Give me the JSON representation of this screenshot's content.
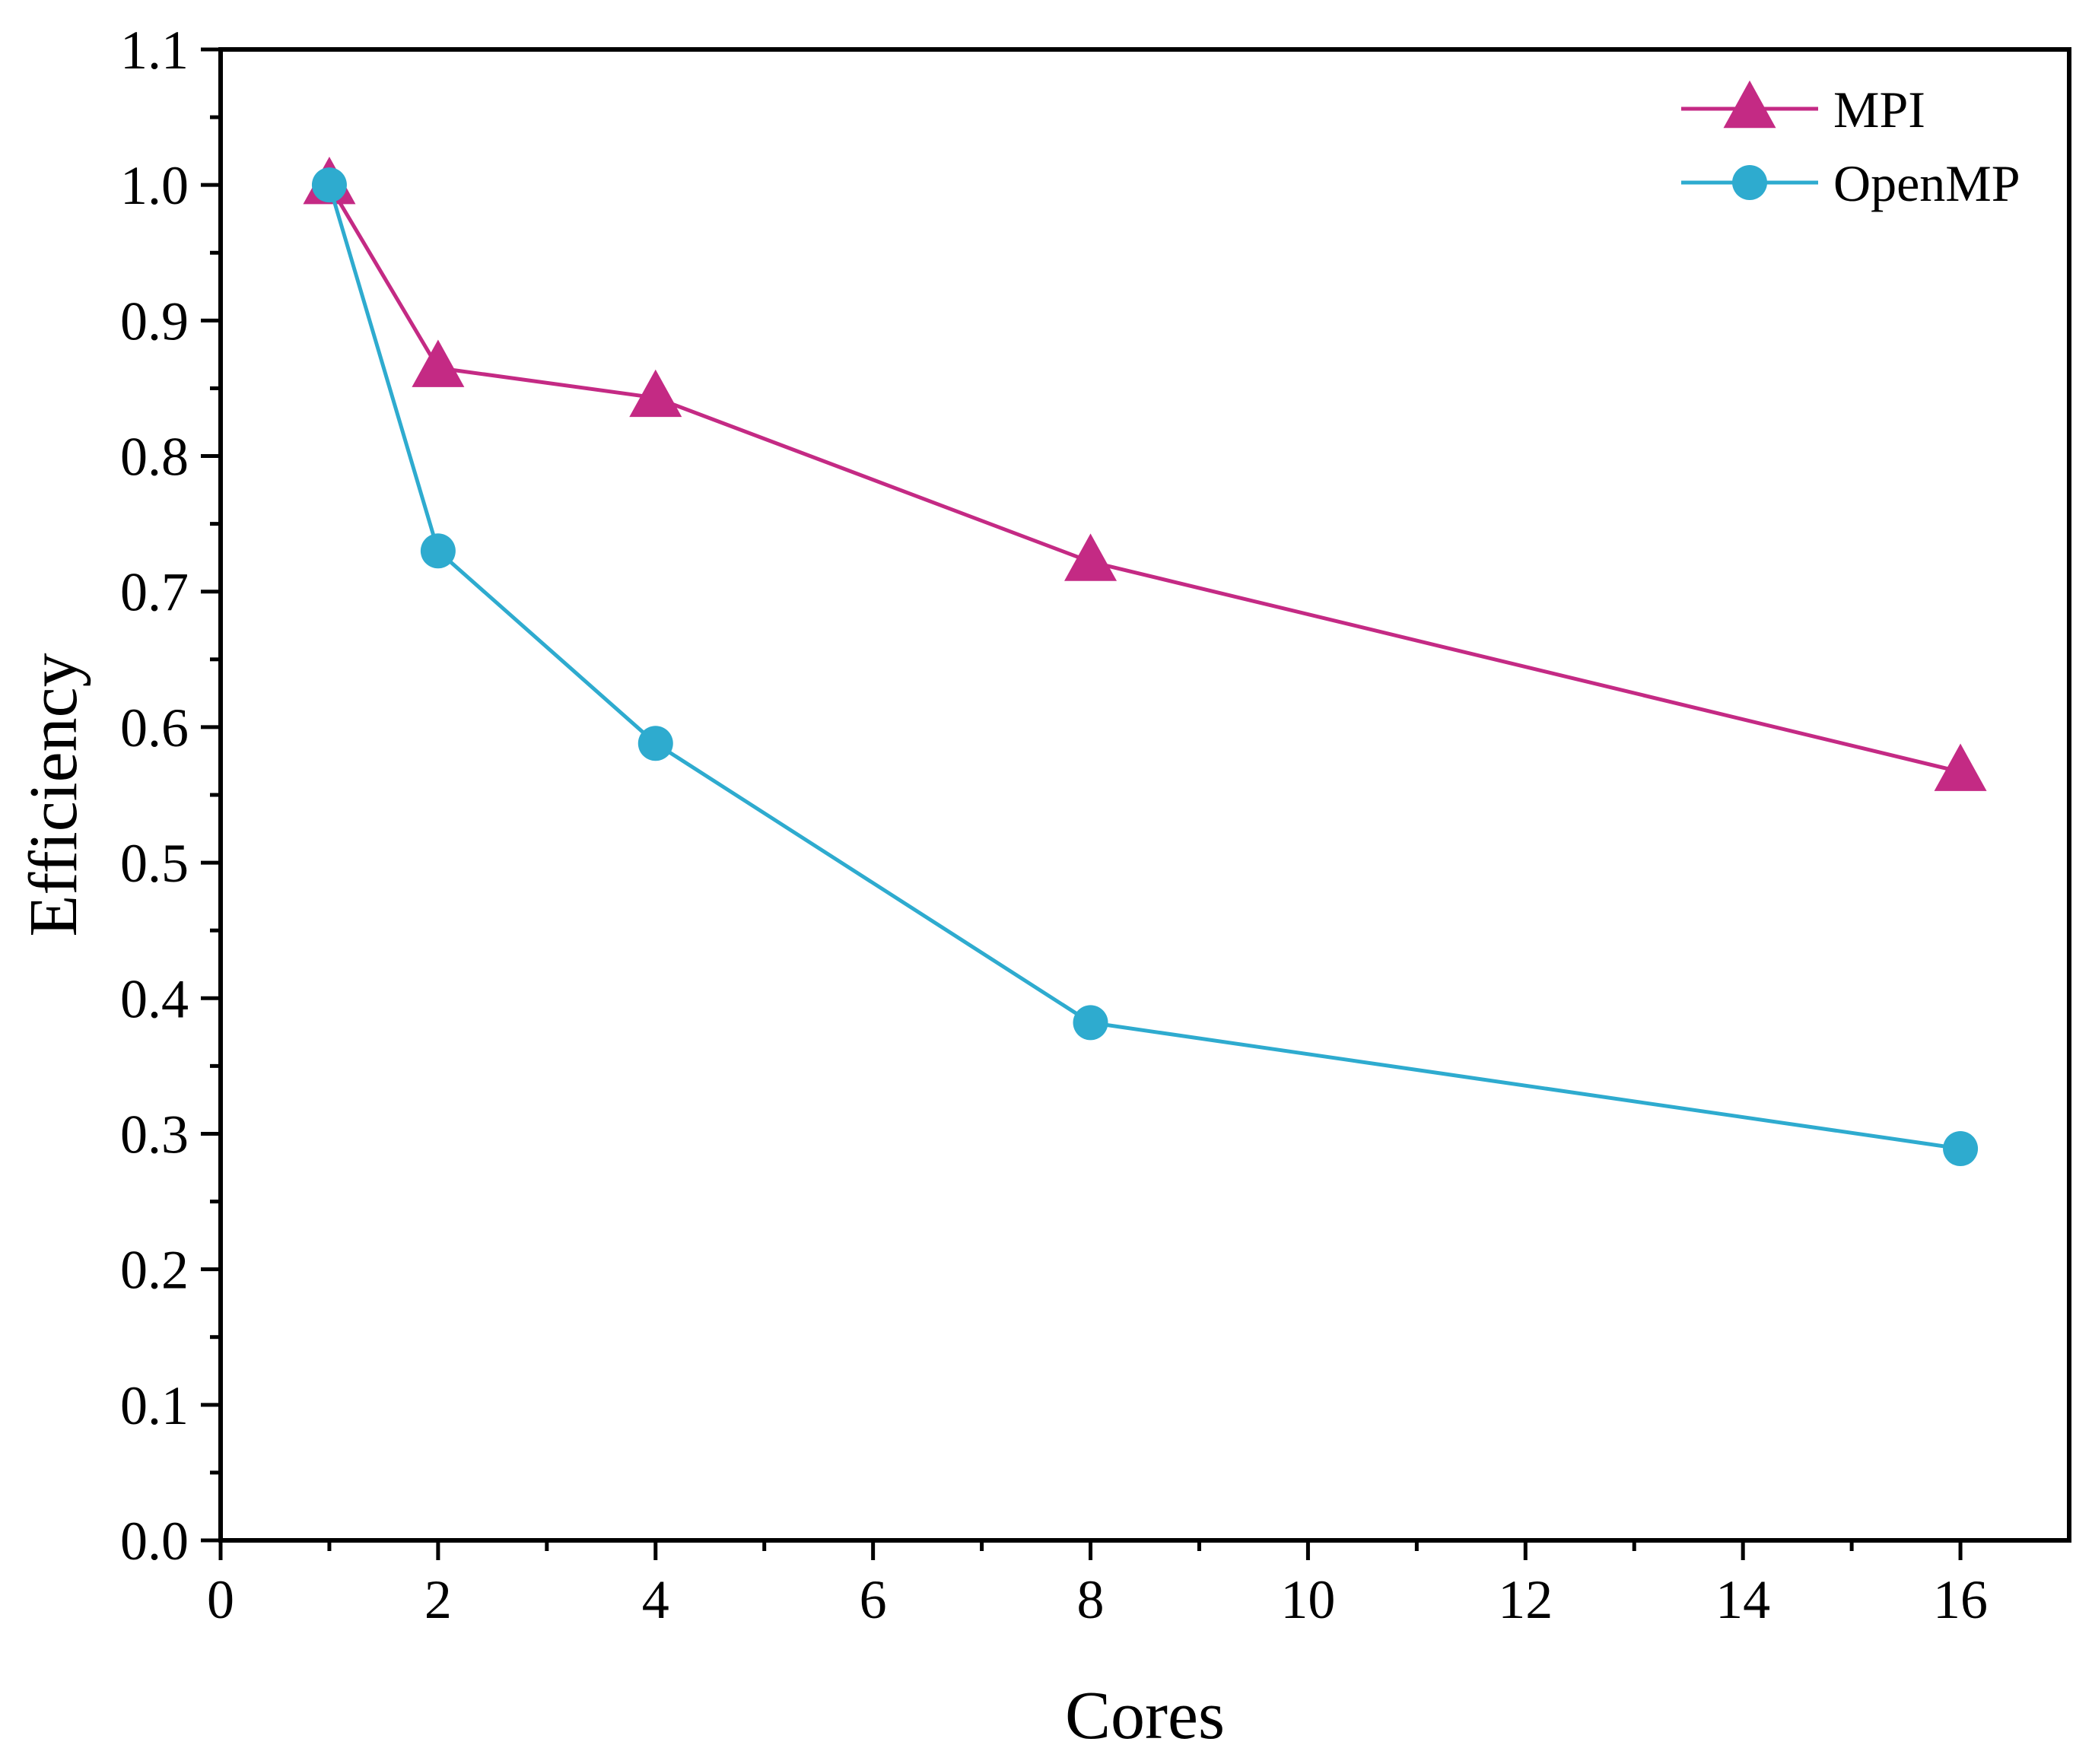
{
  "chart_data": {
    "type": "line",
    "title": "",
    "xlabel": "Cores",
    "ylabel": "Efficiency",
    "xlim": [
      0,
      17
    ],
    "ylim": [
      0.0,
      1.1
    ],
    "x_ticks": [
      0,
      2,
      4,
      6,
      8,
      10,
      12,
      14,
      16
    ],
    "x_tick_labels": [
      "0",
      "2",
      "4",
      "6",
      "8",
      "10",
      "12",
      "14",
      "16"
    ],
    "y_ticks": [
      0.0,
      0.1,
      0.2,
      0.3,
      0.4,
      0.5,
      0.6,
      0.7,
      0.8,
      0.9,
      1.0,
      1.1
    ],
    "y_tick_labels": [
      "0.0",
      "0.1",
      "0.2",
      "0.3",
      "0.4",
      "0.5",
      "0.6",
      "0.7",
      "0.8",
      "0.9",
      "1.0",
      "1.1"
    ],
    "grid": false,
    "legend_position": "top-right",
    "series": [
      {
        "name": "MPI",
        "marker": "triangle",
        "color": "#C42A84",
        "x": [
          1,
          2,
          4,
          8,
          16
        ],
        "values": [
          1.0,
          0.865,
          0.843,
          0.722,
          0.567
        ]
      },
      {
        "name": "OpenMP",
        "marker": "circle",
        "color": "#2EABCF",
        "x": [
          1,
          2,
          4,
          8,
          16
        ],
        "values": [
          1.0,
          0.73,
          0.588,
          0.382,
          0.289
        ]
      }
    ]
  }
}
